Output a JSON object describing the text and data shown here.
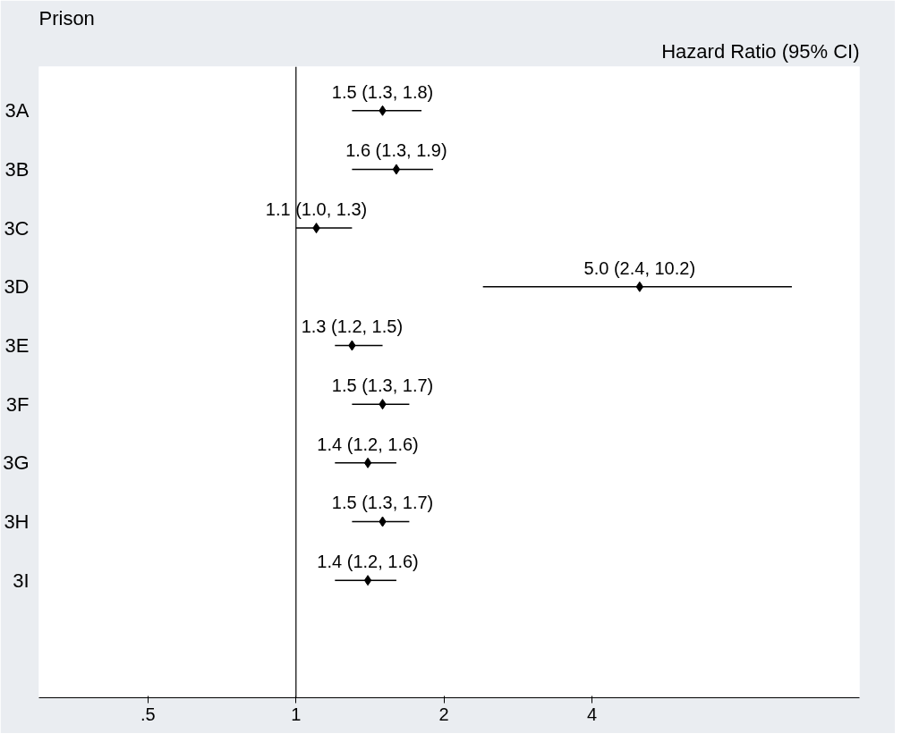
{
  "chart_data": {
    "type": "scatter",
    "orientation": "horizontal",
    "ylabel": "Prison",
    "annotations": [
      "Hazard Ratio (95% CI)"
    ],
    "categories": [
      "3A",
      "3B",
      "3C",
      "3D",
      "3E",
      "3F",
      "3G",
      "3H",
      "3I"
    ],
    "values": [
      1.5,
      1.6,
      1.1,
      5.0,
      1.3,
      1.5,
      1.4,
      1.5,
      1.4
    ],
    "errors": [
      [
        1.3,
        1.8
      ],
      [
        1.3,
        1.9
      ],
      [
        1.0,
        1.3
      ],
      [
        2.4,
        10.2
      ],
      [
        1.2,
        1.5
      ],
      [
        1.3,
        1.7
      ],
      [
        1.2,
        1.6
      ],
      [
        1.3,
        1.7
      ],
      [
        1.2,
        1.6
      ]
    ],
    "value_labels": [
      "1.5 (1.3, 1.8)",
      "1.6 (1.3, 1.9)",
      "1.1 (1.0, 1.3)",
      "5.0 (2.4, 10.2)",
      "1.3 (1.2, 1.5)",
      "1.5 (1.3, 1.7)",
      "1.4 (1.2, 1.6)",
      "1.5 (1.3, 1.7)",
      "1.4 (1.2, 1.6)"
    ],
    "color": "#000000",
    "marker": "diamond",
    "log": "x",
    "grid": false,
    "xlim": [
      0.3,
      14
    ],
    "xticks": [
      {
        "value": 0.5,
        "label": ".5"
      },
      1,
      2,
      4
    ],
    "ref_lines": [
      {
        "axis": "x",
        "value": 1
      }
    ]
  }
}
